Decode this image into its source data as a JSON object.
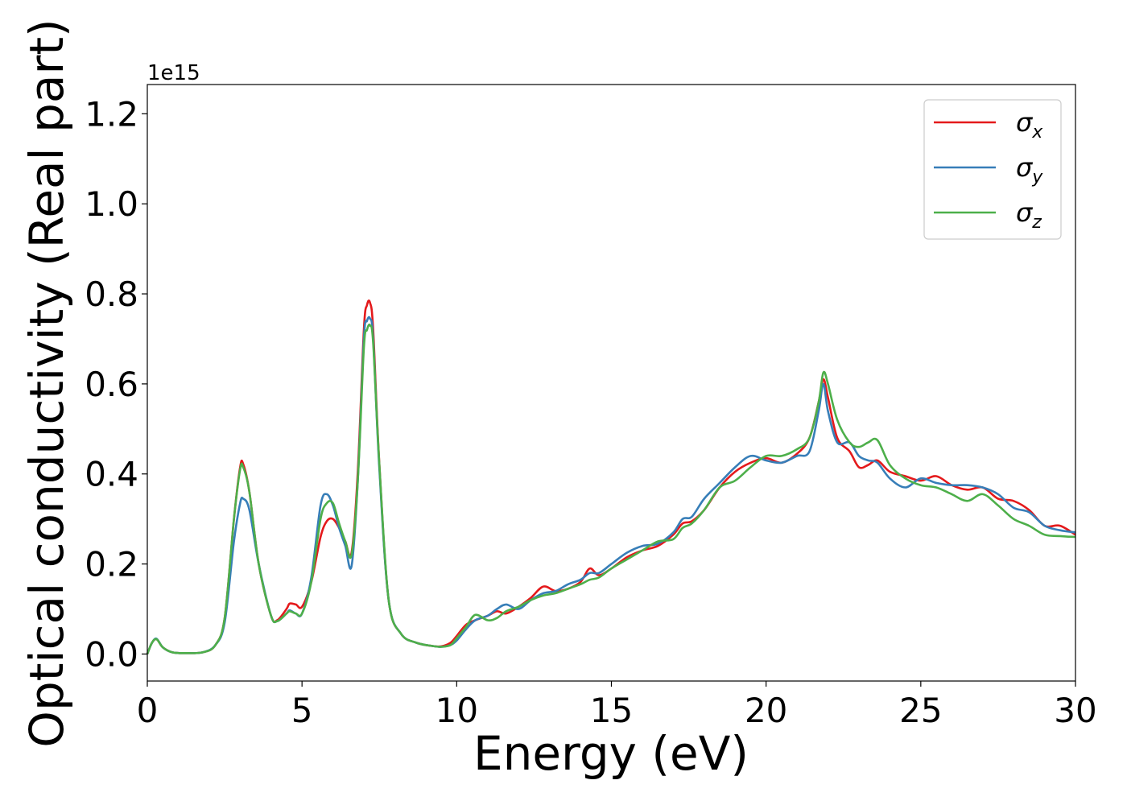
{
  "chart_data": {
    "type": "line",
    "xlabel": "Energy (eV)",
    "ylabel": "Optical conductivity (Real part)",
    "y_offset_text": "1e15",
    "xlim": [
      0,
      30
    ],
    "ylim": [
      -0.06,
      1.265
    ],
    "x_ticks": [
      0,
      5,
      10,
      15,
      20,
      25,
      30
    ],
    "x_tick_labels": [
      "0",
      "5",
      "10",
      "15",
      "20",
      "25",
      "30"
    ],
    "y_ticks": [
      0.0,
      0.2,
      0.4,
      0.6,
      0.8,
      1.0,
      1.2
    ],
    "y_tick_labels": [
      "0.0",
      "0.2",
      "0.4",
      "0.6",
      "0.8",
      "1.0",
      "1.2"
    ],
    "grid": false,
    "legend_position": "top-right",
    "series": [
      {
        "name": "σx",
        "symbol": "σ",
        "subscript": "x",
        "color": "#e41a1c",
        "x": [
          0,
          0.15,
          0.3,
          0.5,
          0.8,
          1.2,
          1.8,
          2.2,
          2.5,
          2.8,
          3.0,
          3.1,
          3.3,
          3.6,
          4.0,
          4.2,
          4.5,
          4.6,
          4.8,
          5.0,
          5.3,
          5.6,
          5.8,
          6.0,
          6.2,
          6.4,
          6.6,
          6.8,
          7.0,
          7.1,
          7.2,
          7.3,
          7.5,
          7.8,
          8.2,
          8.7,
          9.2,
          9.5,
          9.8,
          10.0,
          10.3,
          10.6,
          11.0,
          11.3,
          11.6,
          12.0,
          12.4,
          12.8,
          13.2,
          13.6,
          14.0,
          14.3,
          14.6,
          15.0,
          15.5,
          16.0,
          16.5,
          17.0,
          17.3,
          17.6,
          18.0,
          18.5,
          19.0,
          19.5,
          20.0,
          20.5,
          21.0,
          21.4,
          21.7,
          21.85,
          22.0,
          22.3,
          22.7,
          23.0,
          23.3,
          23.6,
          24.0,
          24.5,
          25.0,
          25.5,
          26.0,
          26.5,
          27.0,
          27.5,
          28.0,
          28.5,
          29.0,
          29.5,
          30.0
        ],
        "y": [
          0.0,
          0.025,
          0.033,
          0.015,
          0.004,
          0.002,
          0.004,
          0.02,
          0.08,
          0.3,
          0.415,
          0.422,
          0.36,
          0.2,
          0.085,
          0.075,
          0.1,
          0.112,
          0.11,
          0.105,
          0.16,
          0.26,
          0.295,
          0.3,
          0.28,
          0.25,
          0.225,
          0.4,
          0.72,
          0.775,
          0.78,
          0.72,
          0.42,
          0.12,
          0.045,
          0.025,
          0.018,
          0.017,
          0.025,
          0.04,
          0.065,
          0.075,
          0.085,
          0.095,
          0.09,
          0.105,
          0.125,
          0.15,
          0.14,
          0.145,
          0.16,
          0.19,
          0.175,
          0.19,
          0.215,
          0.23,
          0.24,
          0.265,
          0.29,
          0.295,
          0.32,
          0.37,
          0.405,
          0.425,
          0.435,
          0.425,
          0.445,
          0.48,
          0.56,
          0.61,
          0.57,
          0.48,
          0.45,
          0.415,
          0.42,
          0.43,
          0.405,
          0.395,
          0.385,
          0.395,
          0.375,
          0.365,
          0.37,
          0.345,
          0.34,
          0.32,
          0.285,
          0.285,
          0.265
        ]
      },
      {
        "name": "σy",
        "symbol": "σ",
        "subscript": "y",
        "color": "#377eb8",
        "x": [
          0,
          0.15,
          0.3,
          0.5,
          0.8,
          1.2,
          1.8,
          2.2,
          2.5,
          2.8,
          3.0,
          3.1,
          3.3,
          3.6,
          4.0,
          4.2,
          4.5,
          4.6,
          4.8,
          5.0,
          5.3,
          5.6,
          5.8,
          6.0,
          6.2,
          6.4,
          6.6,
          6.8,
          7.0,
          7.1,
          7.2,
          7.3,
          7.5,
          7.8,
          8.2,
          8.7,
          9.2,
          9.5,
          9.8,
          10.0,
          10.3,
          10.6,
          11.0,
          11.3,
          11.6,
          12.0,
          12.4,
          12.8,
          13.2,
          13.6,
          14.0,
          14.3,
          14.6,
          15.0,
          15.5,
          16.0,
          16.5,
          17.0,
          17.3,
          17.6,
          18.0,
          18.5,
          19.0,
          19.5,
          20.0,
          20.5,
          21.0,
          21.4,
          21.7,
          21.85,
          22.0,
          22.3,
          22.7,
          23.0,
          23.3,
          23.6,
          24.0,
          24.5,
          25.0,
          25.5,
          26.0,
          26.5,
          27.0,
          27.5,
          28.0,
          28.5,
          29.0,
          29.5,
          30.0
        ],
        "y": [
          0.0,
          0.025,
          0.034,
          0.015,
          0.004,
          0.002,
          0.004,
          0.02,
          0.07,
          0.25,
          0.335,
          0.345,
          0.32,
          0.2,
          0.085,
          0.073,
          0.09,
          0.097,
          0.09,
          0.09,
          0.17,
          0.33,
          0.355,
          0.33,
          0.28,
          0.24,
          0.195,
          0.38,
          0.7,
          0.74,
          0.745,
          0.7,
          0.41,
          0.12,
          0.045,
          0.025,
          0.018,
          0.016,
          0.02,
          0.03,
          0.055,
          0.075,
          0.085,
          0.1,
          0.11,
          0.1,
          0.12,
          0.135,
          0.14,
          0.155,
          0.165,
          0.18,
          0.18,
          0.2,
          0.225,
          0.24,
          0.245,
          0.27,
          0.3,
          0.305,
          0.345,
          0.38,
          0.415,
          0.44,
          0.43,
          0.425,
          0.44,
          0.45,
          0.54,
          0.6,
          0.54,
          0.47,
          0.47,
          0.44,
          0.43,
          0.425,
          0.39,
          0.37,
          0.39,
          0.38,
          0.375,
          0.375,
          0.37,
          0.355,
          0.325,
          0.315,
          0.285,
          0.275,
          0.27
        ]
      },
      {
        "name": "σz",
        "symbol": "σ",
        "subscript": "z",
        "color": "#4daf4a",
        "x": [
          0,
          0.15,
          0.3,
          0.5,
          0.8,
          1.2,
          1.8,
          2.2,
          2.5,
          2.8,
          3.0,
          3.1,
          3.3,
          3.6,
          4.0,
          4.2,
          4.5,
          4.6,
          4.8,
          5.0,
          5.3,
          5.6,
          5.8,
          6.0,
          6.2,
          6.4,
          6.6,
          6.8,
          7.0,
          7.1,
          7.2,
          7.3,
          7.5,
          7.8,
          8.2,
          8.7,
          9.2,
          9.5,
          9.8,
          10.0,
          10.3,
          10.6,
          11.0,
          11.3,
          11.6,
          12.0,
          12.4,
          12.8,
          13.2,
          13.6,
          14.0,
          14.3,
          14.6,
          15.0,
          15.5,
          16.0,
          16.5,
          17.0,
          17.3,
          17.6,
          18.0,
          18.5,
          19.0,
          19.5,
          20.0,
          20.5,
          21.0,
          21.4,
          21.7,
          21.85,
          22.0,
          22.3,
          22.7,
          23.0,
          23.3,
          23.6,
          24.0,
          24.5,
          25.0,
          25.5,
          26.0,
          26.5,
          27.0,
          27.5,
          28.0,
          28.5,
          29.0,
          29.5,
          30.0
        ],
        "y": [
          0.0,
          0.025,
          0.033,
          0.015,
          0.004,
          0.002,
          0.004,
          0.02,
          0.08,
          0.3,
          0.41,
          0.415,
          0.36,
          0.2,
          0.085,
          0.073,
          0.09,
          0.095,
          0.09,
          0.09,
          0.16,
          0.3,
          0.335,
          0.335,
          0.29,
          0.25,
          0.22,
          0.38,
          0.68,
          0.72,
          0.73,
          0.69,
          0.42,
          0.12,
          0.045,
          0.025,
          0.018,
          0.016,
          0.02,
          0.035,
          0.06,
          0.087,
          0.075,
          0.08,
          0.095,
          0.105,
          0.12,
          0.13,
          0.135,
          0.145,
          0.155,
          0.165,
          0.17,
          0.19,
          0.21,
          0.23,
          0.25,
          0.255,
          0.28,
          0.29,
          0.32,
          0.37,
          0.385,
          0.415,
          0.44,
          0.44,
          0.455,
          0.48,
          0.56,
          0.625,
          0.6,
          0.52,
          0.47,
          0.46,
          0.47,
          0.475,
          0.42,
          0.39,
          0.375,
          0.37,
          0.355,
          0.34,
          0.355,
          0.33,
          0.3,
          0.285,
          0.265,
          0.262,
          0.26
        ]
      }
    ]
  }
}
